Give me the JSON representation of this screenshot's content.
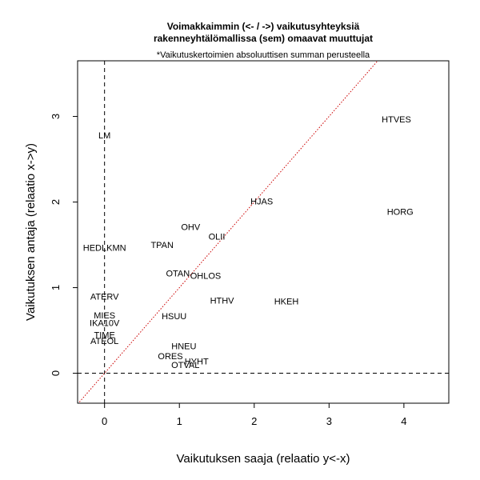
{
  "chart_data": {
    "type": "scatter",
    "title_line1": "Voimakkaimmin (<- / ->) vaikutusyhteyksiä",
    "title_line2": "rakenneyhtälömallissa  (sem) omaavat muuttujat",
    "subtitle": "*Vaikutuskertoimien absoluuttisen summan perusteella",
    "xlabel": "Vaikutuksen saaja (relaatio y<-x)",
    "ylabel": "Vaikutuksen antaja (relaatio x->y)",
    "xlim": [
      -0.36,
      4.6
    ],
    "ylim": [
      -0.35,
      3.65
    ],
    "x_ticks": [
      0,
      1,
      2,
      3,
      4
    ],
    "y_ticks": [
      0,
      1,
      2,
      3
    ],
    "reference_lines": {
      "vertical_x": 0,
      "horizontal_y": 0,
      "diagonal": "y = x",
      "diagonal_color": "#cc0000",
      "line_color": "#000000"
    },
    "points": [
      {
        "label": "LM",
        "x": 0.0,
        "y": 2.78
      },
      {
        "label": "HTVES",
        "x": 3.9,
        "y": 2.97
      },
      {
        "label": "HJAS",
        "x": 2.1,
        "y": 2.01
      },
      {
        "label": "HORG",
        "x": 3.95,
        "y": 1.89
      },
      {
        "label": "OHV",
        "x": 1.15,
        "y": 1.71
      },
      {
        "label": "OLII",
        "x": 1.5,
        "y": 1.6
      },
      {
        "label": "HEDLKMN",
        "x": 0.0,
        "y": 1.47
      },
      {
        "label": "TPAN",
        "x": 0.77,
        "y": 1.5
      },
      {
        "label": "OTAN",
        "x": 0.98,
        "y": 1.17
      },
      {
        "label": "OHLOS",
        "x": 1.35,
        "y": 1.14
      },
      {
        "label": "ATERV",
        "x": 0.0,
        "y": 0.9
      },
      {
        "label": "HTHV",
        "x": 1.57,
        "y": 0.85
      },
      {
        "label": "HKEH",
        "x": 2.43,
        "y": 0.84
      },
      {
        "label": "MIES",
        "x": 0.0,
        "y": 0.68
      },
      {
        "label": "HSUU",
        "x": 0.93,
        "y": 0.67
      },
      {
        "label": "IKA10V",
        "x": 0.0,
        "y": 0.59
      },
      {
        "label": "TIME",
        "x": 0.0,
        "y": 0.45
      },
      {
        "label": "ATEOL",
        "x": 0.0,
        "y": 0.38
      },
      {
        "label": "HNEU",
        "x": 1.06,
        "y": 0.32
      },
      {
        "label": "ORES",
        "x": 0.88,
        "y": 0.2
      },
      {
        "label": "HYHT",
        "x": 1.23,
        "y": 0.14
      },
      {
        "label": "OTVAL",
        "x": 1.08,
        "y": 0.1
      }
    ]
  }
}
